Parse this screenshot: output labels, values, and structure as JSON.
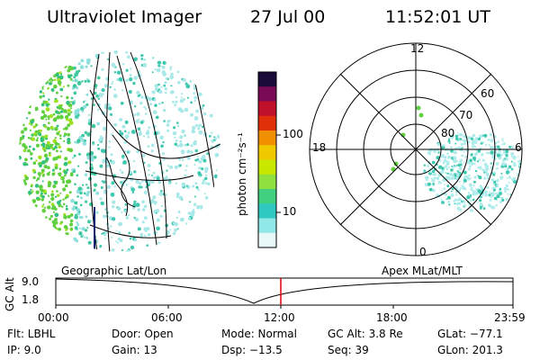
{
  "header": {
    "instrument": "Ultraviolet Imager",
    "date": "27 Jul 00",
    "time": "11:52:01 UT"
  },
  "colorbar": {
    "unit_label": "photon cm⁻²s⁻¹",
    "ticks": [
      "100",
      "10"
    ],
    "colors": [
      "#1a0a3a",
      "#7a0a55",
      "#c0102a",
      "#e0300a",
      "#f09000",
      "#f0c800",
      "#c8e800",
      "#90e040",
      "#40d080",
      "#30c8c0",
      "#90e8e8",
      "#e8f8f8"
    ]
  },
  "polar_plot": {
    "mlt_labels": [
      "12",
      "18",
      "6",
      "0"
    ],
    "lat_labels": [
      "60",
      "70",
      "80"
    ]
  },
  "timeline": {
    "left_title": "Geographic Lat/Lon",
    "right_title": "Apex MLat/MLT",
    "axis_title": "GC Alt",
    "y_labels": [
      "9.0",
      "1.8"
    ],
    "x_labels": [
      "00:00",
      "06:00",
      "12:00",
      "18:00",
      "23:59"
    ],
    "marker_color": "#e00000"
  },
  "info": {
    "flt": "Flt: LBHL",
    "ip": "IP:  9.0",
    "door": "Door: Open",
    "gain": "Gain: 13",
    "mode": "Mode: Normal",
    "dsp": "Dsp:  −13.5",
    "gc_alt": "GC Alt: 3.8 Re",
    "seq": "Seq: 39",
    "glat": "GLat: −77.1",
    "glon": "GLon: 201.3"
  }
}
